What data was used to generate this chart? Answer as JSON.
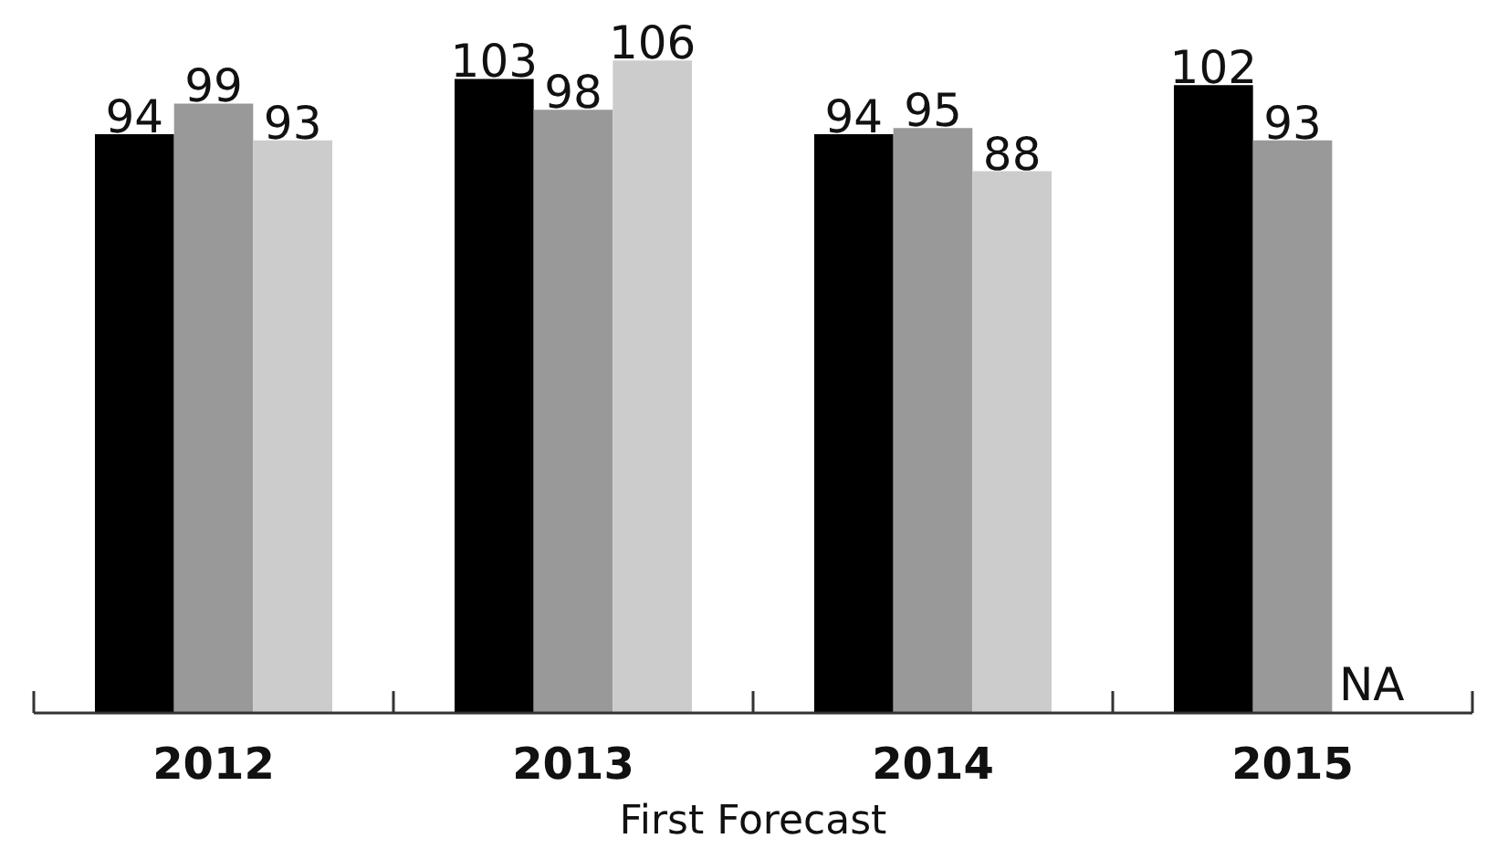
{
  "chart_data": {
    "type": "bar",
    "categories": [
      "2012",
      "2013",
      "2014",
      "2015"
    ],
    "xlabel": "First Forecast",
    "series": [
      {
        "color": "#000000",
        "values": [
          94,
          103,
          94,
          102
        ],
        "value_labels": [
          "94",
          "103",
          "94",
          "102"
        ]
      },
      {
        "color": "#999999",
        "values": [
          99,
          98,
          95,
          93
        ],
        "value_labels": [
          "99",
          "98",
          "95",
          "93"
        ]
      },
      {
        "color": "#cccccc",
        "values": [
          93,
          106,
          88,
          null
        ],
        "value_labels": [
          "93",
          "106",
          "88",
          "NA"
        ]
      }
    ],
    "tick_labels": "x",
    "grid": false
  }
}
